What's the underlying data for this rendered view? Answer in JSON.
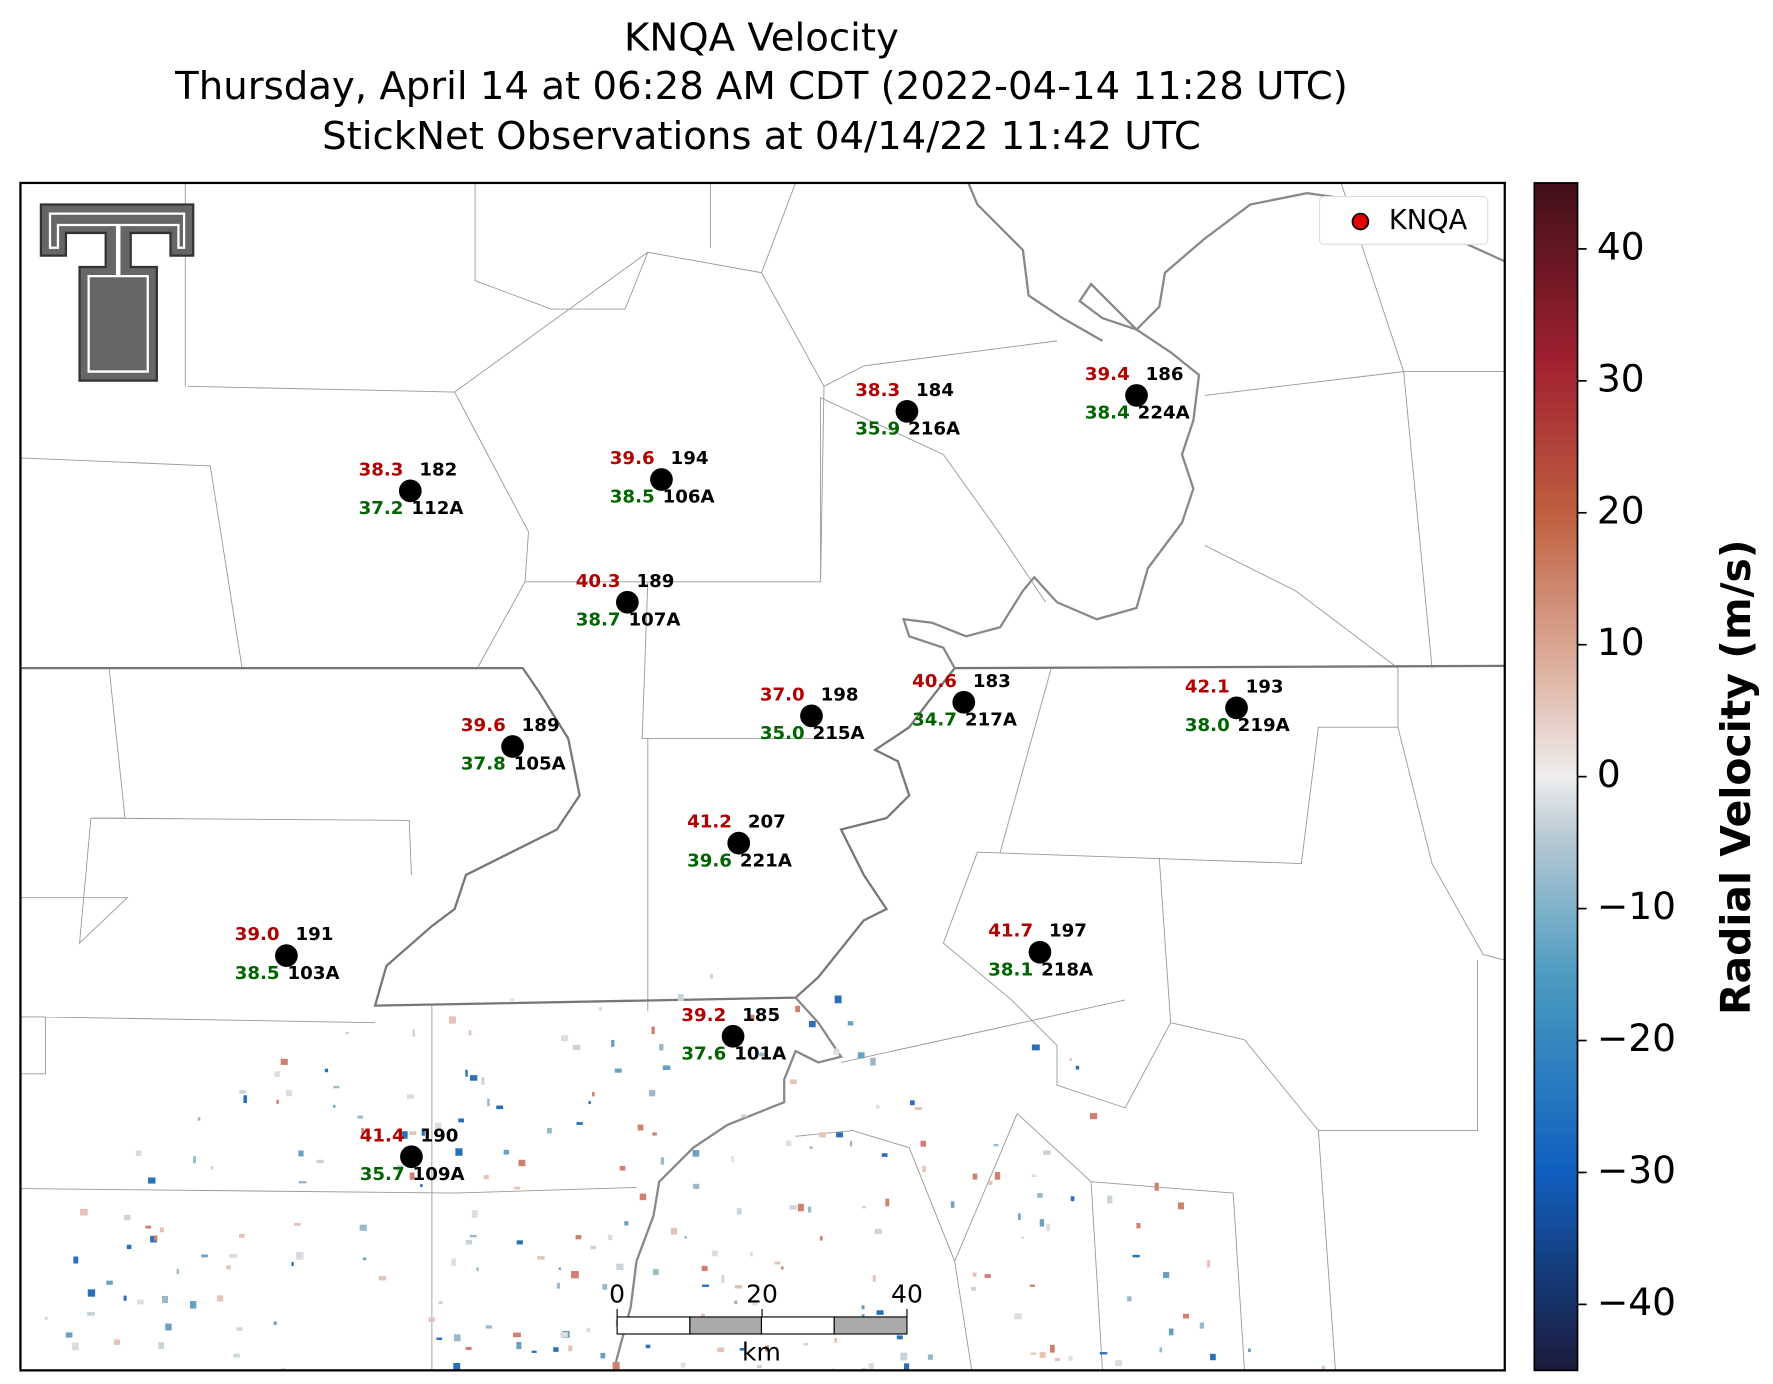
{
  "header": {
    "title": "KNQA Velocity",
    "subtitle": "Thursday, April 14 at 06:28 AM CDT (2022-04-14 11:28 UTC)",
    "observations": "StickNet Observations at 04/14/22 11:42 UTC"
  },
  "legend": {
    "label": "KNQA"
  },
  "stations": [
    {
      "id": "112A",
      "temperature": "38.3",
      "dewpoint": "37.2",
      "wind_direction": "182"
    },
    {
      "id": "106A",
      "temperature": "39.6",
      "dewpoint": "38.5",
      "wind_direction": "194"
    },
    {
      "id": "216A",
      "temperature": "38.3",
      "dewpoint": "35.9",
      "wind_direction": "184"
    },
    {
      "id": "224A",
      "temperature": "39.4",
      "dewpoint": "38.4",
      "wind_direction": "186"
    },
    {
      "id": "107A",
      "temperature": "40.3",
      "dewpoint": "38.7",
      "wind_direction": "189"
    },
    {
      "id": "215A",
      "temperature": "37.0",
      "dewpoint": "35.0",
      "wind_direction": "198"
    },
    {
      "id": "217A",
      "temperature": "40.6",
      "dewpoint": "34.7",
      "wind_direction": "183"
    },
    {
      "id": "219A",
      "temperature": "42.1",
      "dewpoint": "38.0",
      "wind_direction": "193"
    },
    {
      "id": "105A",
      "temperature": "39.6",
      "dewpoint": "37.8",
      "wind_direction": "189"
    },
    {
      "id": "221A",
      "temperature": "41.2",
      "dewpoint": "39.6",
      "wind_direction": "207"
    },
    {
      "id": "103A",
      "temperature": "39.0",
      "dewpoint": "38.5",
      "wind_direction": "191"
    },
    {
      "id": "218A",
      "temperature": "41.7",
      "dewpoint": "38.1",
      "wind_direction": "197"
    },
    {
      "id": "101A",
      "temperature": "39.2",
      "dewpoint": "37.6",
      "wind_direction": "185"
    },
    {
      "id": "109A",
      "temperature": "41.4",
      "dewpoint": "35.7",
      "wind_direction": "190"
    }
  ],
  "scale_bar": {
    "unit": "km",
    "ticks": [
      0,
      20,
      40
    ]
  },
  "colorbar": {
    "label": "Radial Velocity (m/s)",
    "lim": [
      -45,
      45
    ],
    "ticks": [
      {
        "value": -40,
        "label": "−40"
      },
      {
        "value": -30,
        "label": "−30"
      },
      {
        "value": -20,
        "label": "−20"
      },
      {
        "value": -10,
        "label": "−10"
      },
      0,
      10,
      20,
      30,
      40
    ]
  }
}
